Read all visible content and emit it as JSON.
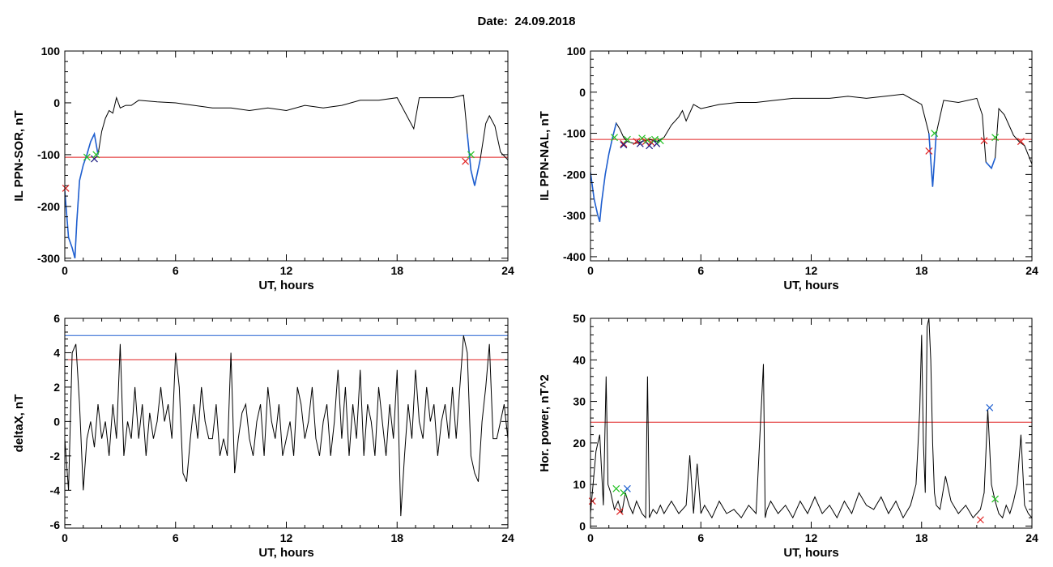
{
  "header": {
    "date_label": "Date:",
    "date_value": "24.09.2018"
  },
  "chart_data": [
    {
      "type": "line",
      "xlabel": "UT, hours",
      "ylabel": "IL PPN-SOR, nT",
      "xlim": [
        0,
        24
      ],
      "ylim": [
        -305,
        100
      ],
      "xticks": [
        0,
        6,
        12,
        18,
        24
      ],
      "yticks": [
        -300,
        -200,
        -100,
        0,
        100
      ],
      "threshold": {
        "value": -105,
        "color": "#e02020"
      },
      "series": [
        {
          "color": "#000000",
          "x": [
            0,
            0.2,
            0.4,
            0.55,
            0.65,
            0.8,
            1.0,
            1.2,
            1.4,
            1.6,
            1.8,
            2.0,
            2.2,
            2.4,
            2.6,
            2.8,
            3.0,
            3.3,
            3.6,
            4,
            5,
            6,
            7,
            8,
            9,
            10,
            11,
            12,
            13,
            14,
            15,
            16,
            17,
            18,
            18.9,
            19.2,
            19.5,
            20,
            21,
            21.6,
            21.8,
            22.0,
            22.2,
            22.5,
            22.8,
            23.0,
            23.3,
            23.6,
            24
          ],
          "y": [
            -170,
            -260,
            -280,
            -300,
            -230,
            -150,
            -120,
            -100,
            -75,
            -60,
            -100,
            -55,
            -30,
            -15,
            -20,
            10,
            -10,
            -5,
            -5,
            5,
            2,
            0,
            -5,
            -10,
            -10,
            -15,
            -10,
            -15,
            -5,
            -10,
            -5,
            5,
            5,
            10,
            -50,
            10,
            10,
            10,
            10,
            15,
            -60,
            -130,
            -160,
            -110,
            -40,
            -25,
            -45,
            -95,
            -110
          ]
        },
        {
          "color": "#1f5fd0",
          "x": [
            0,
            0.2,
            0.4,
            0.55,
            0.65,
            0.8,
            1.0,
            1.2,
            1.4,
            1.6,
            1.8
          ],
          "y": [
            -170,
            -260,
            -280,
            -300,
            -230,
            -150,
            -120,
            -100,
            -75,
            -60,
            -100
          ]
        },
        {
          "color": "#1f5fd0",
          "x": [
            21.8,
            22.0,
            22.2,
            22.5
          ],
          "y": [
            -60,
            -130,
            -160,
            -110
          ]
        }
      ],
      "markers": [
        {
          "x": 0.05,
          "y": -165,
          "color": "#e02020"
        },
        {
          "x": 1.2,
          "y": -105,
          "color": "#22c022"
        },
        {
          "x": 1.6,
          "y": -108,
          "color": "#1a1a80"
        },
        {
          "x": 1.7,
          "y": -100,
          "color": "#22c022"
        },
        {
          "x": 21.7,
          "y": -113,
          "color": "#e02020"
        },
        {
          "x": 22.0,
          "y": -100,
          "color": "#22c022"
        }
      ]
    },
    {
      "type": "line",
      "xlabel": "UT, hours",
      "ylabel": "IL PPN-NAL, nT",
      "xlim": [
        0,
        24
      ],
      "ylim": [
        -410,
        100
      ],
      "xticks": [
        0,
        6,
        12,
        18,
        24
      ],
      "yticks": [
        -400,
        -300,
        -200,
        -100,
        0,
        100
      ],
      "threshold": {
        "value": -115,
        "color": "#e02020"
      },
      "series": [
        {
          "color": "#000000",
          "x": [
            0,
            0.2,
            0.4,
            0.5,
            0.6,
            0.8,
            1.0,
            1.2,
            1.4,
            1.6,
            1.8,
            2.0,
            2.4,
            2.8,
            3.2,
            3.6,
            4.0,
            4.4,
            4.8,
            5.0,
            5.2,
            5.6,
            6,
            7,
            8,
            9,
            10,
            11,
            12,
            13,
            14,
            15,
            16,
            17,
            18,
            18.4,
            18.6,
            18.8,
            19.2,
            20,
            21,
            21.3,
            21.5,
            21.8,
            22.0,
            22.2,
            22.5,
            22.8,
            23.0,
            23.3,
            23.6,
            24
          ],
          "y": [
            -195,
            -260,
            -300,
            -315,
            -270,
            -200,
            -150,
            -110,
            -75,
            -90,
            -110,
            -120,
            -125,
            -120,
            -115,
            -120,
            -110,
            -80,
            -60,
            -45,
            -70,
            -30,
            -40,
            -30,
            -25,
            -25,
            -20,
            -15,
            -15,
            -15,
            -10,
            -15,
            -10,
            -5,
            -30,
            -100,
            -230,
            -100,
            -20,
            -25,
            -15,
            -55,
            -170,
            -185,
            -160,
            -40,
            -55,
            -85,
            -105,
            -120,
            -130,
            -175
          ]
        },
        {
          "color": "#1f5fd0",
          "x": [
            0,
            0.2,
            0.4,
            0.5,
            0.6,
            0.8,
            1.0,
            1.2,
            1.4
          ],
          "y": [
            -195,
            -260,
            -300,
            -315,
            -270,
            -200,
            -150,
            -110,
            -75
          ]
        },
        {
          "color": "#1f5fd0",
          "x": [
            18.4,
            18.6,
            18.8
          ],
          "y": [
            -100,
            -230,
            -100
          ]
        },
        {
          "color": "#1f5fd0",
          "x": [
            21.5,
            21.8,
            22.0
          ],
          "y": [
            -170,
            -185,
            -160
          ]
        }
      ],
      "markers": [
        {
          "x": 1.3,
          "y": -110,
          "color": "#22c022"
        },
        {
          "x": 1.8,
          "y": -125,
          "color": "#e02020"
        },
        {
          "x": 1.8,
          "y": -128,
          "color": "#1a1a80"
        },
        {
          "x": 2.0,
          "y": -115,
          "color": "#22c022"
        },
        {
          "x": 2.5,
          "y": -120,
          "color": "#e02020"
        },
        {
          "x": 2.7,
          "y": -125,
          "color": "#1a1a80"
        },
        {
          "x": 2.8,
          "y": -112,
          "color": "#22c022"
        },
        {
          "x": 3.0,
          "y": -120,
          "color": "#e02020"
        },
        {
          "x": 3.1,
          "y": -117,
          "color": "#22c022"
        },
        {
          "x": 3.2,
          "y": -130,
          "color": "#1a1a80"
        },
        {
          "x": 3.3,
          "y": -122,
          "color": "#e02020"
        },
        {
          "x": 3.5,
          "y": -115,
          "color": "#22c022"
        },
        {
          "x": 3.6,
          "y": -125,
          "color": "#1a1a80"
        },
        {
          "x": 3.8,
          "y": -118,
          "color": "#22c022"
        },
        {
          "x": 18.4,
          "y": -143,
          "color": "#e02020"
        },
        {
          "x": 18.7,
          "y": -100,
          "color": "#22c022"
        },
        {
          "x": 21.4,
          "y": -118,
          "color": "#e02020"
        },
        {
          "x": 22.0,
          "y": -110,
          "color": "#22c022"
        },
        {
          "x": 23.4,
          "y": -120,
          "color": "#e02020"
        }
      ]
    },
    {
      "type": "line",
      "xlabel": "UT, hours",
      "ylabel": "deltaX, nT",
      "xlim": [
        0,
        24
      ],
      "ylim": [
        -6.2,
        6
      ],
      "xticks": [
        0,
        6,
        12,
        18,
        24
      ],
      "yticks": [
        -6,
        -4,
        -2,
        0,
        2,
        4,
        6
      ],
      "threshold": {
        "value": 3.6,
        "color": "#e02020"
      },
      "threshold2": {
        "value": 5.0,
        "color": "#1f5fd0"
      },
      "series": [
        {
          "color": "#000000",
          "x": [
            0,
            0.2,
            0.4,
            0.6,
            0.8,
            1.0,
            1.2,
            1.4,
            1.6,
            1.8,
            2.0,
            2.2,
            2.4,
            2.6,
            2.8,
            3.0,
            3.2,
            3.4,
            3.6,
            3.8,
            4.0,
            4.2,
            4.4,
            4.6,
            4.8,
            5.0,
            5.2,
            5.4,
            5.6,
            5.8,
            6.0,
            6.2,
            6.4,
            6.6,
            6.8,
            7.0,
            7.2,
            7.4,
            7.6,
            7.8,
            8.0,
            8.2,
            8.4,
            8.6,
            8.8,
            9.0,
            9.2,
            9.4,
            9.6,
            9.8,
            10.0,
            10.2,
            10.4,
            10.6,
            10.8,
            11.0,
            11.2,
            11.4,
            11.6,
            11.8,
            12.0,
            12.2,
            12.4,
            12.6,
            12.8,
            13.0,
            13.2,
            13.4,
            13.6,
            13.8,
            14.0,
            14.2,
            14.4,
            14.6,
            14.8,
            15.0,
            15.2,
            15.4,
            15.6,
            15.8,
            16.0,
            16.2,
            16.4,
            16.6,
            16.8,
            17.0,
            17.2,
            17.4,
            17.6,
            17.8,
            18.0,
            18.2,
            18.4,
            18.6,
            18.8,
            19.0,
            19.2,
            19.4,
            19.6,
            19.8,
            20.0,
            20.2,
            20.4,
            20.6,
            20.8,
            21.0,
            21.2,
            21.4,
            21.6,
            21.8,
            22.0,
            22.2,
            22.4,
            22.6,
            22.8,
            23.0,
            23.2,
            23.4,
            23.6,
            23.8,
            24.0
          ],
          "y": [
            -1,
            -4,
            4,
            4.5,
            1,
            -4,
            -1,
            0,
            -1.5,
            1,
            -1,
            0,
            -2,
            1,
            -1,
            4.5,
            -2,
            0,
            -1,
            2,
            -1,
            1,
            -2,
            0.5,
            -1,
            0,
            2,
            0,
            1,
            -1,
            4,
            2,
            -3,
            -3.5,
            -1,
            1,
            -1,
            2,
            0,
            -1,
            -1,
            1,
            -2,
            -1,
            -2,
            4,
            -3,
            -1,
            0.5,
            1,
            -1,
            -2,
            0,
            1,
            -2,
            2,
            0,
            -1,
            1,
            -2,
            -1,
            0,
            -2,
            2,
            1,
            -1,
            0,
            2,
            -1,
            -2,
            0,
            1,
            -2,
            0,
            3,
            -1,
            2,
            -2,
            1,
            -1,
            3,
            -2,
            1,
            0,
            -2,
            2,
            0,
            -2,
            1,
            -1,
            3,
            -5.5,
            -2,
            1,
            -1,
            3,
            0,
            -1,
            2,
            0,
            1,
            -2,
            0,
            1,
            -1,
            2,
            -1,
            2,
            5,
            4,
            -2,
            -3,
            -3.5,
            0,
            2,
            4.5,
            -1,
            -1,
            0,
            1,
            -1
          ]
        }
      ],
      "markers": []
    },
    {
      "type": "line",
      "xlabel": "UT, hours",
      "ylabel": "Hor. power, nT^2",
      "xlim": [
        0,
        24
      ],
      "ylim": [
        -0.5,
        50
      ],
      "xticks": [
        0,
        6,
        12,
        18,
        24
      ],
      "yticks": [
        0,
        10,
        20,
        30,
        40,
        50
      ],
      "threshold": {
        "value": 25,
        "color": "#e02020"
      },
      "series": [
        {
          "color": "#000000",
          "x": [
            0,
            0.3,
            0.5,
            0.7,
            0.85,
            0.95,
            1.1,
            1.3,
            1.5,
            1.7,
            1.9,
            2.1,
            2.3,
            2.5,
            2.8,
            3.0,
            3.1,
            3.2,
            3.4,
            3.6,
            3.8,
            4.0,
            4.4,
            4.8,
            5.2,
            5.4,
            5.6,
            5.8,
            6.0,
            6.2,
            6.6,
            7.0,
            7.4,
            7.8,
            8.2,
            8.6,
            9.0,
            9.4,
            9.5,
            9.6,
            9.8,
            10.2,
            10.6,
            11.0,
            11.4,
            11.8,
            12.2,
            12.6,
            13.0,
            13.4,
            13.8,
            14.2,
            14.6,
            15.0,
            15.4,
            15.8,
            16.2,
            16.6,
            17.0,
            17.4,
            17.7,
            17.9,
            18.0,
            18.1,
            18.2,
            18.3,
            18.4,
            18.5,
            18.6,
            18.7,
            18.8,
            19.0,
            19.3,
            19.6,
            20.0,
            20.4,
            20.8,
            21.0,
            21.2,
            21.4,
            21.6,
            21.8,
            22.0,
            22.2,
            22.4,
            22.6,
            22.8,
            23.0,
            23.2,
            23.4,
            23.6,
            23.8,
            24.0
          ],
          "y": [
            3,
            18,
            22,
            5,
            36,
            10,
            8,
            4,
            6,
            3,
            8,
            5,
            3,
            6,
            3,
            2,
            36,
            2,
            4,
            3,
            5,
            3,
            6,
            3,
            5,
            17,
            3,
            15,
            3,
            5,
            2,
            6,
            3,
            4,
            2,
            5,
            3,
            39,
            2,
            4,
            6,
            3,
            5,
            2,
            6,
            3,
            7,
            3,
            5,
            2,
            6,
            3,
            8,
            5,
            4,
            7,
            3,
            6,
            2,
            5,
            10,
            28,
            46,
            20,
            8,
            48,
            50,
            40,
            20,
            8,
            5,
            4,
            12,
            6,
            3,
            5,
            2,
            3,
            4,
            8,
            28,
            10,
            6,
            3,
            2,
            5,
            3,
            6,
            10,
            22,
            5,
            3,
            2
          ]
        }
      ],
      "markers": [
        {
          "x": 0.1,
          "y": 6,
          "color": "#e02020"
        },
        {
          "x": 1.4,
          "y": 9,
          "color": "#22c022"
        },
        {
          "x": 1.6,
          "y": 3.5,
          "color": "#e02020"
        },
        {
          "x": 1.8,
          "y": 8,
          "color": "#22c022"
        },
        {
          "x": 2.0,
          "y": 9,
          "color": "#1f5fd0"
        },
        {
          "x": 21.2,
          "y": 1.5,
          "color": "#e02020"
        },
        {
          "x": 21.7,
          "y": 28.5,
          "color": "#1f5fd0"
        },
        {
          "x": 22.0,
          "y": 6.5,
          "color": "#22c022"
        }
      ]
    }
  ]
}
